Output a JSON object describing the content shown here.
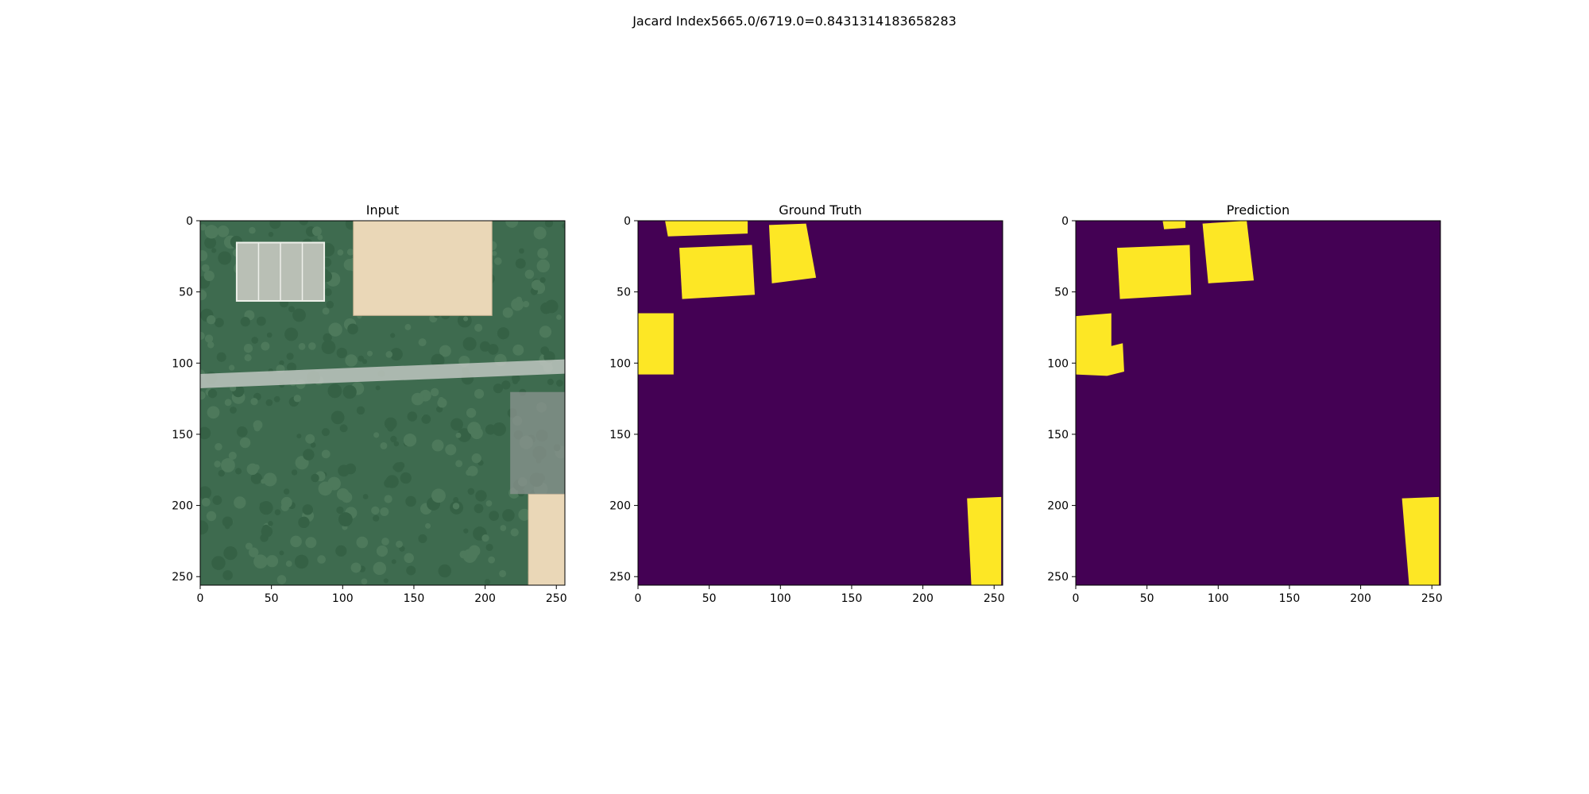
{
  "figure": {
    "suptitle": "Jacard Index5665.0/6719.0=0.8431314183658283"
  },
  "chart_data": [
    {
      "type": "image",
      "title": "Input",
      "image_extent": [
        256,
        256
      ],
      "xticks": [
        0,
        50,
        100,
        150,
        200,
        250
      ],
      "yticks": [
        0,
        50,
        100,
        150,
        200,
        250
      ],
      "content": "aerial photograph (RGB satellite tile)",
      "features": [
        {
          "kind": "building",
          "rect": [
            0.42,
            0.0,
            0.8,
            0.26
          ]
        },
        {
          "kind": "building",
          "rect": [
            0.9,
            0.75,
            1.0,
            1.0
          ]
        },
        {
          "kind": "compound",
          "rect": [
            0.1,
            0.06,
            0.34,
            0.22
          ]
        },
        {
          "kind": "road",
          "from": [
            0.0,
            0.44
          ],
          "to": [
            1.0,
            0.4
          ]
        },
        {
          "kind": "bare",
          "rect": [
            0.85,
            0.47,
            1.0,
            0.75
          ]
        }
      ],
      "colors": {
        "vegetation": "#3e6b4f",
        "road": "#bfc6c0",
        "roof": "#ead7b7"
      }
    },
    {
      "type": "heatmap",
      "title": "Ground Truth",
      "image_extent": [
        256,
        256
      ],
      "xticks": [
        0,
        50,
        100,
        150,
        200,
        250
      ],
      "yticks": [
        0,
        50,
        100,
        150,
        200,
        250
      ],
      "colormap": {
        "0": "#440154",
        "1": "#fde725"
      },
      "regions": [
        {
          "value": 1,
          "polygon": [
            [
              19,
              0
            ],
            [
              77,
              0
            ],
            [
              77,
              9
            ],
            [
              21,
              11
            ]
          ]
        },
        {
          "value": 1,
          "polygon": [
            [
              29,
              19
            ],
            [
              80,
              17
            ],
            [
              82,
              52
            ],
            [
              31,
              55
            ]
          ]
        },
        {
          "value": 1,
          "polygon": [
            [
              92,
              3
            ],
            [
              118,
              2
            ],
            [
              125,
              40
            ],
            [
              94,
              44
            ]
          ]
        },
        {
          "value": 1,
          "polygon": [
            [
              0,
              65
            ],
            [
              25,
              65
            ],
            [
              25,
              108
            ],
            [
              0,
              108
            ]
          ]
        },
        {
          "value": 1,
          "polygon": [
            [
              231,
              195
            ],
            [
              255,
              194
            ],
            [
              255,
              256
            ],
            [
              234,
              256
            ]
          ]
        }
      ]
    },
    {
      "type": "heatmap",
      "title": "Prediction",
      "image_extent": [
        256,
        256
      ],
      "xticks": [
        0,
        50,
        100,
        150,
        200,
        250
      ],
      "yticks": [
        0,
        50,
        100,
        150,
        200,
        250
      ],
      "colormap": {
        "0": "#440154",
        "1": "#fde725"
      },
      "regions": [
        {
          "value": 1,
          "polygon": [
            [
              61,
              0
            ],
            [
              77,
              0
            ],
            [
              77,
              5
            ],
            [
              62,
              6
            ]
          ]
        },
        {
          "value": 1,
          "polygon": [
            [
              29,
              19
            ],
            [
              80,
              17
            ],
            [
              81,
              52
            ],
            [
              31,
              55
            ]
          ]
        },
        {
          "value": 1,
          "polygon": [
            [
              89,
              2
            ],
            [
              120,
              0
            ],
            [
              125,
              42
            ],
            [
              93,
              44
            ]
          ]
        },
        {
          "value": 1,
          "polygon": [
            [
              0,
              67
            ],
            [
              25,
              65
            ],
            [
              25,
              88
            ],
            [
              33,
              86
            ],
            [
              34,
              106
            ],
            [
              22,
              109
            ],
            [
              0,
              108
            ]
          ]
        },
        {
          "value": 1,
          "polygon": [
            [
              229,
              195
            ],
            [
              255,
              194
            ],
            [
              255,
              256
            ],
            [
              234,
              256
            ]
          ]
        }
      ]
    }
  ]
}
